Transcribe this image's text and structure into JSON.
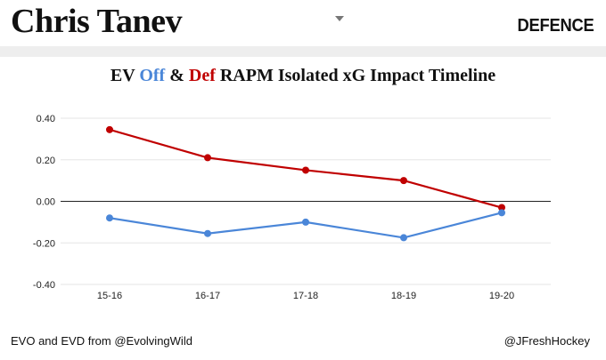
{
  "header": {
    "player_name": "Chris Tanev",
    "position_label": "DEFENCE"
  },
  "title": {
    "prefix": "EV",
    "off_word": "Off",
    "amp": "&",
    "def_word": "Def",
    "suffix": "RAPM Isolated xG Impact Timeline"
  },
  "footer": {
    "source": "EVO and EVD from @EvolvingWild",
    "credit": "@JFreshHockey"
  },
  "colors": {
    "off": "#4a86d8",
    "def": "#c00000"
  },
  "chart_data": {
    "type": "line",
    "categories": [
      "15-16",
      "16-17",
      "17-18",
      "18-19",
      "19-20"
    ],
    "series": [
      {
        "name": "Def",
        "color": "#c00000",
        "values": [
          0.345,
          0.21,
          0.15,
          0.1,
          -0.03
        ]
      },
      {
        "name": "Off",
        "color": "#4a86d8",
        "values": [
          -0.08,
          -0.155,
          -0.1,
          -0.175,
          -0.055
        ]
      }
    ],
    "yticks": [
      "0.40",
      "0.20",
      "0.00",
      "-0.20",
      "-0.40"
    ],
    "ylim": [
      -0.4,
      0.4
    ],
    "grid": true,
    "zero_line": true
  }
}
